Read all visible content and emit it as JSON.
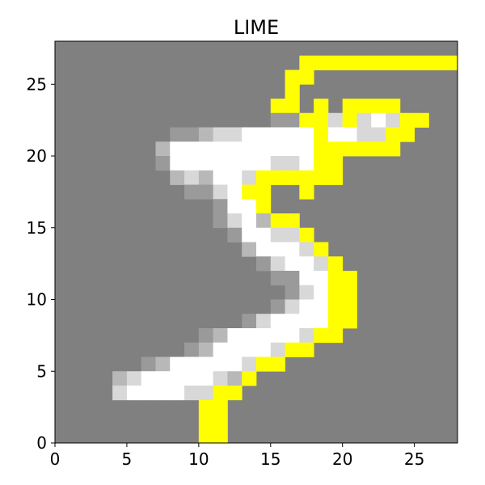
{
  "chart_data": {
    "type": "heatmap",
    "title": "LIME",
    "xlabel": "",
    "ylabel": "",
    "xlim": [
      0,
      28
    ],
    "ylim": [
      0,
      28
    ],
    "origin": "lower",
    "xticks": [
      0,
      5,
      10,
      15,
      20,
      25
    ],
    "yticks": [
      0,
      5,
      10,
      15,
      20,
      25
    ],
    "xtick_labels": [
      "0",
      "5",
      "10",
      "15",
      "20",
      "25"
    ],
    "ytick_labels": [
      "0",
      "5",
      "10",
      "15",
      "20",
      "25"
    ],
    "grid": false,
    "colors": {
      "background": "#808080",
      "highlight": "#ffff00"
    },
    "rows_top_to_bottom": [
      "............................",
      "..........................yy",
      ".................yyyyyyyyyyy",
      ".................yy.........",
      "................y...........",
      "...............yy...........",
      "...............yy..y.yyyy...",
      "...............yyy.y.yyyy...",
      "...............yyyy......y..",
      "...............yyyy.....yy..",
      "................yyyyyyyyyy..",
      "..................yy........",
      "..................yyyyy.....",
      "..................yyyyy.....",
      ".............yyyyyyy........",
      ".............yy.............",
      "...............yy...........",
      ".................y..........",
      "..................yy........",
      "..................yyyy......",
      "...................yyy......",
      "....................yyyy....",
      "....................yyyy....",
      "....................yyyy....",
      "....................yyy.....",
      "...................yyy......",
      "...................yy.......",
      "..................yyy.......",
      "................yyy.........",
      "...............yy...........",
      "..............y.............",
      ".............yy.............",
      ".............y..............",
      "............yy..............",
      "...........yy...............",
      "..........yy................",
      "..........yy................",
      "............................"
    ],
    "grid_rows_top_to_bottom": [
      "0000000000000000000000000000",
      "0000000000000000000000000000",
      "0000000000000000000000000000",
      "0000000000000000000000000000",
      "000000000000000000000000yyy0",
      "00000000000000000yyyyyyyyyyy",
      "0000000000000000yy0000000000",
      "000000000000000yy00000000000",
      "000000000000000yyy0y0yyyy000",
      "0000000000000000yyzzzyyyyy00",
      "00000000bbwwwwwwwwwwwyyyy000",
      "0000000bwwwwwwwwwwwyyyyyy000",
      "0000000bwwwwwwwwwwwyy0000000",
      "00000000bbbwwwwwwyyyy0000000",
      "0000000000cwwwwyyyyyy0000000",
      "00000000000ww0yyyy0y00000000",
      "00000000000wwwyy000000000000",
      "000000000000cwwyyyy000000000",
      "0000000000000wwwwwy000000000",
      "0000000000000wwwwwwy00000000",
      "00000000000000wwwwwyy0000000",
      "000000000000000wwwwwyy000000",
      "0000000000000000wwwwyy000000",
      "00000000000000bbwwwwyy000000",
      "00000000000cwwwwwwwwyy000000",
      "0000000000cwwwwwwwwwyy000000",
      "000000000cwwwwwwwwwyy0000000",
      "000000000wwwwwwwwyyy00000000",
      "0000000cwwwwwwwwwyy000000000",
      "00000cwwwwwwwwyyyy0000000000",
      "0000cwwwwwwwwcyy000000000000",
      "0000wwwwwwwbcyy0000000000000",
      "00000000000yy000000000000000",
      "0000000000yy0000000000000000",
      "0000000000yy0000000000000000",
      "0000000000000000000000000000"
    ],
    "pixels_top_to_bottom": [
      "0000000000000000000000000000",
      "00000000000000000yyyyyyyyyyy",
      "0000000000000000yy0000000000",
      "0000000000000000y00000000000",
      "000000000000000yy0y0yyyy0000",
      "0000000000000abyyy5yb9wyy000",
      "00000008a9bcdwwwwww9w9wy0000",
      "0000007wwwwwwwwwwwwyyyyyy000",
      "0000008wwwwwwwwwb9wyy0000000",
      "00000008a9bcdwwwdyyyy0000000",
      "000000000008bwwyyyyyyy000000",
      "00000000000cwwyyyyyy00000000",
      "000000000000cwwyyyyyyy000000",
      "000000000000cwwwyy0000000000",
      "0000000000000cwwyyyyyy000000",
      "00000000000007wwwyyyyy000000",
      "00000000000000wwwyyyyy000000",
      "000000000000000dwwyy00000000",
      "00000000000000009wwyy0000000",
      "0000000000000000cwwyy0000000",
      "00000000000000000wwyy0000000",
      "00000000000000006dwyy0000000",
      "000000000000009bwwwyy0000000",
      "0000000000008bwwwwwyyy000000",
      "00000000008cwwwwwwwyy0000000",
      "0000000009cwwwwwwcyyy0000000",
      "000000008cwwwwwwwyy000000000",
      "000000000000000000000000000"
    ]
  }
}
